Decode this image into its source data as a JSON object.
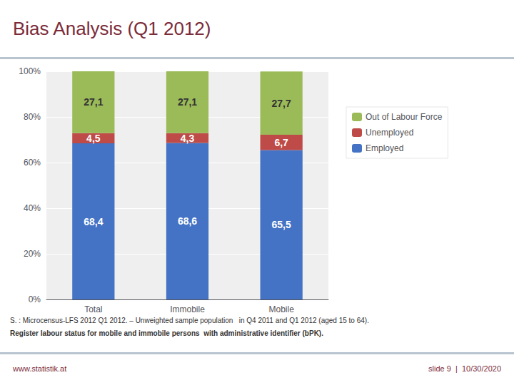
{
  "chart_data": {
    "type": "bar",
    "title": "Bias Analysis (Q1 2012)",
    "categories": [
      "Total",
      "Immobile",
      "Mobile"
    ],
    "stacked": true,
    "data_labels": true,
    "series": [
      {
        "name": "Employed",
        "color": "#4472C4",
        "values": [
          68.4,
          68.6,
          65.5
        ],
        "value_labels": [
          "68,4",
          "68,6",
          "65,5"
        ]
      },
      {
        "name": "Unemployed",
        "color": "#BE4B48",
        "values": [
          4.5,
          4.3,
          6.7
        ],
        "value_labels": [
          "4,5",
          "4,3",
          "6,7"
        ]
      },
      {
        "name": "Out of Labour Force",
        "color": "#9BBB59",
        "values": [
          27.1,
          27.1,
          27.7
        ],
        "value_labels": [
          "27,1",
          "27,1",
          "27,7"
        ]
      }
    ],
    "ylim": [
      0,
      100
    ],
    "yticks": [
      {
        "value": 0,
        "label": "0%"
      },
      {
        "value": 20,
        "label": "20%"
      },
      {
        "value": 40,
        "label": "40%"
      },
      {
        "value": 60,
        "label": "60%"
      },
      {
        "value": 80,
        "label": "80%"
      },
      {
        "value": 100,
        "label": "100%"
      }
    ],
    "grid": true,
    "legend": "right",
    "annotations": [
      "S. : Microcensus-LFS 2012 Q1 2012. – Unweighted sample population   in Q4 2011 and Q1 2012 (aged 15 to 64).",
      "Register labour status for mobile and immobile persons  with administrative identifier (bPK).",
      "www.statistik.at",
      "slide 9  |  10/30/2020"
    ]
  }
}
